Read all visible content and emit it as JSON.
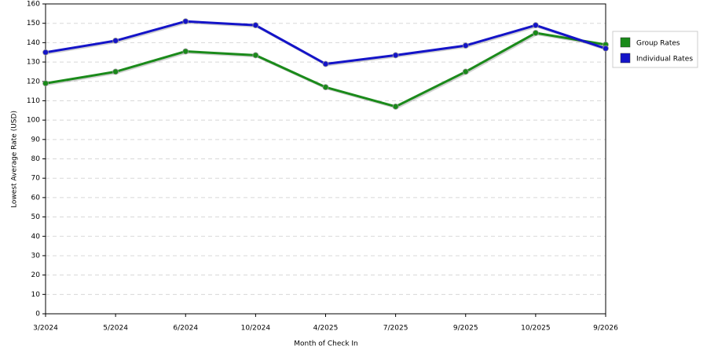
{
  "chart_data": {
    "type": "line",
    "x_label": "Month of Check In",
    "y_label": "Lowest Average Rate (USD)",
    "categories": [
      "3/2024",
      "5/2024",
      "6/2024",
      "10/2024",
      "4/2025",
      "7/2025",
      "9/2025",
      "10/2025",
      "9/2026"
    ],
    "series": [
      {
        "name": "Group Rates",
        "color": "#1a8a1a",
        "values": [
          119,
          125,
          135.5,
          133.5,
          117,
          107,
          125,
          145,
          139
        ]
      },
      {
        "name": "Individual Rates",
        "color": "#1414c8",
        "values": [
          135,
          141,
          151,
          149,
          129,
          133.5,
          138.5,
          149,
          137
        ]
      }
    ],
    "ylim": [
      0,
      160
    ],
    "yticks": [
      0,
      10,
      20,
      30,
      40,
      50,
      60,
      70,
      80,
      90,
      100,
      110,
      120,
      130,
      140,
      150,
      160
    ],
    "grid": true,
    "legend": "right"
  }
}
